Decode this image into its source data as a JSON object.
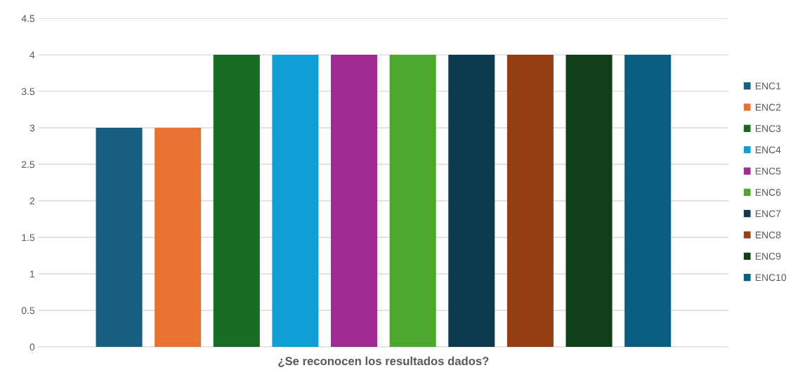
{
  "chart_data": {
    "type": "bar",
    "categories": [
      "¿Se reconocen los resultados dados?"
    ],
    "series": [
      {
        "name": "ENC1",
        "color": "#175e82",
        "values": [
          3
        ]
      },
      {
        "name": "ENC2",
        "color": "#e97132",
        "values": [
          3
        ]
      },
      {
        "name": "ENC3",
        "color": "#196b24",
        "values": [
          4
        ]
      },
      {
        "name": "ENC4",
        "color": "#0f9ed5",
        "values": [
          4
        ]
      },
      {
        "name": "ENC5",
        "color": "#a02b93",
        "values": [
          4
        ]
      },
      {
        "name": "ENC6",
        "color": "#4ea72e",
        "values": [
          4
        ]
      },
      {
        "name": "ENC7",
        "color": "#0e3a51",
        "values": [
          4
        ]
      },
      {
        "name": "ENC8",
        "color": "#953e11",
        "values": [
          4
        ]
      },
      {
        "name": "ENC9",
        "color": "#113f18",
        "values": [
          4
        ]
      },
      {
        "name": "ENC10",
        "color": "#095f81",
        "values": [
          4
        ]
      }
    ],
    "ylim": [
      0,
      4.5
    ],
    "yticks": [
      0,
      0.5,
      1,
      1.5,
      2,
      2.5,
      3,
      3.5,
      4,
      4.5
    ],
    "grid": "y",
    "legend": "right"
  }
}
